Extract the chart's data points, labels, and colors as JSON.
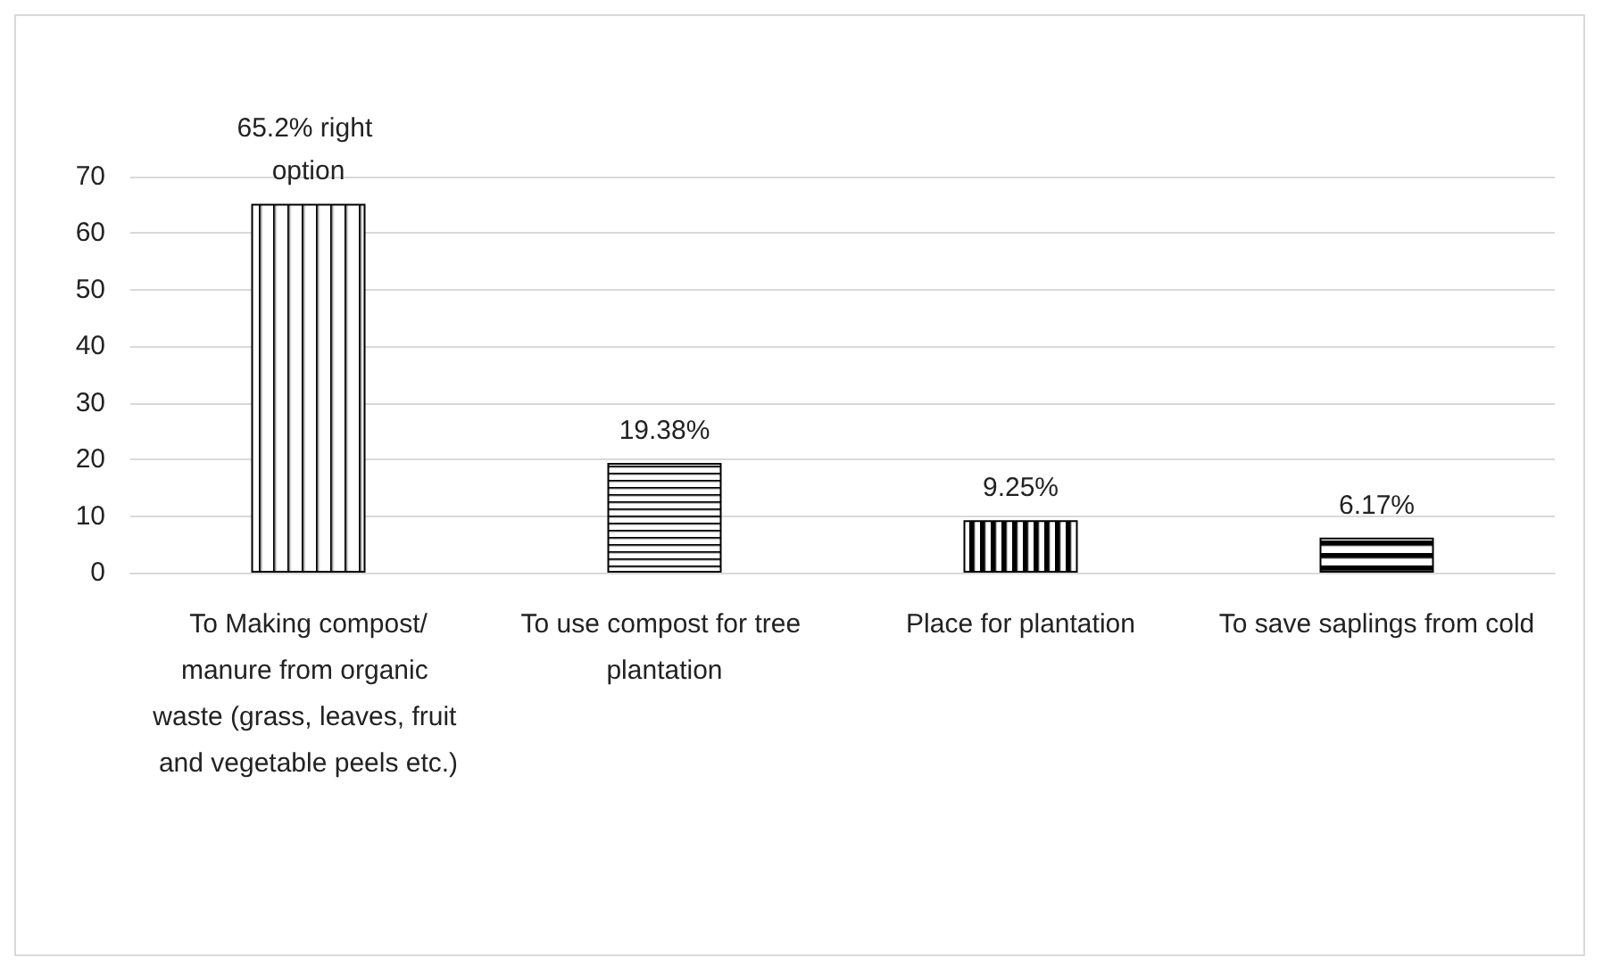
{
  "chart_data": {
    "type": "bar",
    "categories": [
      "To Making compost/manure from organic waste (grass, leaves, fruit and vegetable peels etc.)",
      "To use compost for tree plantation",
      "Place for plantation",
      "To save saplings from cold"
    ],
    "values": [
      65.2,
      19.38,
      9.25,
      6.17
    ],
    "value_labels": [
      "65.2% right option",
      "19.38%",
      "9.25%",
      "6.17%"
    ],
    "colors": [
      "#000000",
      "#000000",
      "#000000",
      "#000000"
    ],
    "ylim": [
      0,
      70
    ],
    "yticks": [
      0,
      10,
      20,
      30,
      40,
      50,
      60,
      70
    ],
    "grid": "y"
  }
}
